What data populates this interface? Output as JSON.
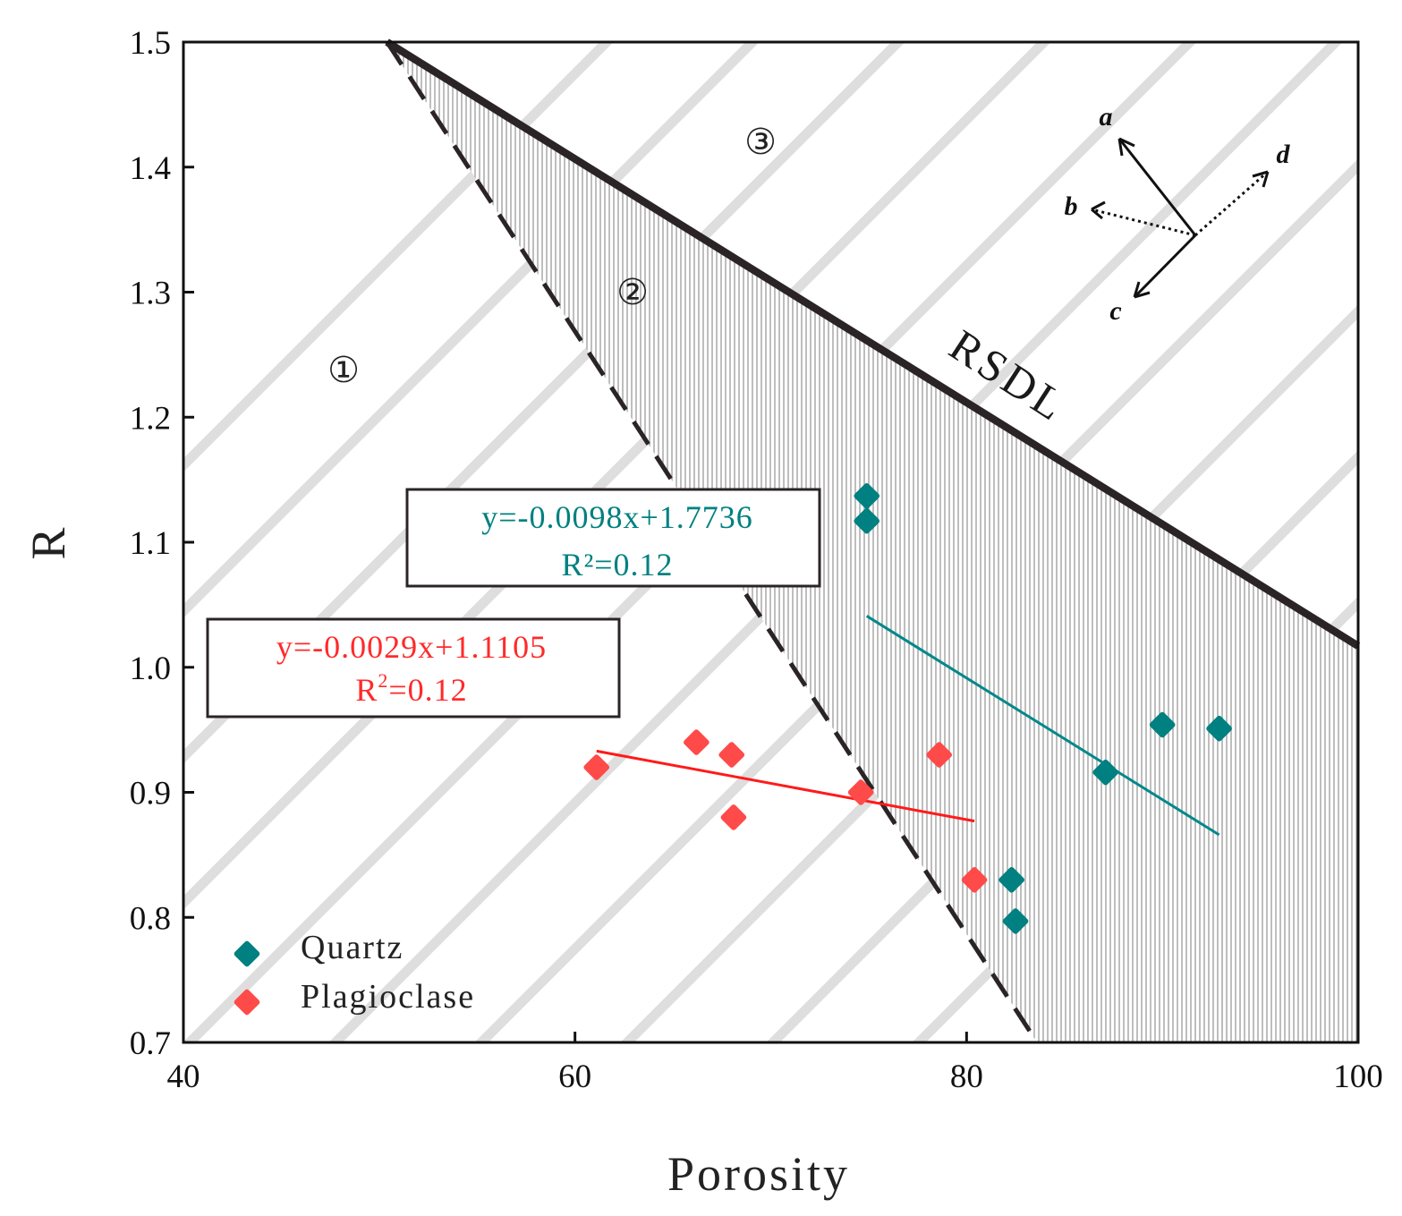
{
  "chart_data": {
    "type": "scatter",
    "xlabel": "Porosity",
    "ylabel": "R",
    "xlim": [
      40,
      100
    ],
    "ylim": [
      0.7,
      1.5
    ],
    "x_ticks": [
      40,
      60,
      80,
      100
    ],
    "y_ticks": [
      0.7,
      0.8,
      0.9,
      1.0,
      1.1,
      1.2,
      1.3,
      1.4,
      1.5
    ],
    "y_tick_labels": [
      "0.7",
      "0.8",
      "0.9",
      "1.0",
      "1.1",
      "1.2",
      "1.3",
      "1.4",
      "1.5"
    ],
    "grid": false,
    "series": [
      {
        "name": "Quartz",
        "color": "#008080",
        "marker": "diamond",
        "points": [
          {
            "x": 74.9,
            "y": 1.137
          },
          {
            "x": 74.9,
            "y": 1.117
          },
          {
            "x": 82.3,
            "y": 0.83
          },
          {
            "x": 82.5,
            "y": 0.797
          },
          {
            "x": 87.1,
            "y": 0.916
          },
          {
            "x": 90.0,
            "y": 0.954
          },
          {
            "x": 92.9,
            "y": 0.951
          }
        ],
        "fit": {
          "equation": "y=-0.0098x+1.7736",
          "r2_label": "R²=0.12",
          "x_range": [
            74.9,
            92.9
          ],
          "y_ends": [
            1.041,
            0.866
          ]
        }
      },
      {
        "name": "Plagioclase",
        "color": "#ff4a4a",
        "marker": "diamond",
        "points": [
          {
            "x": 61.1,
            "y": 0.92
          },
          {
            "x": 66.2,
            "y": 0.94
          },
          {
            "x": 68.0,
            "y": 0.93
          },
          {
            "x": 68.1,
            "y": 0.88
          },
          {
            "x": 74.6,
            "y": 0.9
          },
          {
            "x": 78.6,
            "y": 0.93
          },
          {
            "x": 80.4,
            "y": 0.83
          }
        ],
        "fit": {
          "equation": "y=-0.0029x+1.1105",
          "r2_label": "R",
          "r2_superscript": "2",
          "r2_value": "=0.12",
          "x_range": [
            61.1,
            80.4
          ],
          "y_ends": [
            0.933,
            0.877
          ]
        }
      }
    ],
    "boundaries": [
      {
        "name": "RSDL",
        "style": "solid",
        "points": [
          [
            50.4,
            1.5
          ],
          [
            100,
            1.017
          ]
        ]
      },
      {
        "name": "",
        "style": "dashed",
        "points": [
          [
            50.4,
            1.5
          ],
          [
            83.6,
            0.7
          ]
        ]
      }
    ],
    "regions": [
      {
        "label": "①",
        "fill": "diagonal-hatch"
      },
      {
        "label": "②",
        "fill": "vertical-hatch"
      },
      {
        "label": "③",
        "fill": "none"
      }
    ],
    "legend_position": "bottom-left",
    "annotations": {
      "arrows": [
        {
          "label": "a",
          "style": "solid"
        },
        {
          "label": "b",
          "style": "dotted"
        },
        {
          "label": "c",
          "style": "solid"
        },
        {
          "label": "d",
          "style": "dotted"
        }
      ]
    }
  }
}
